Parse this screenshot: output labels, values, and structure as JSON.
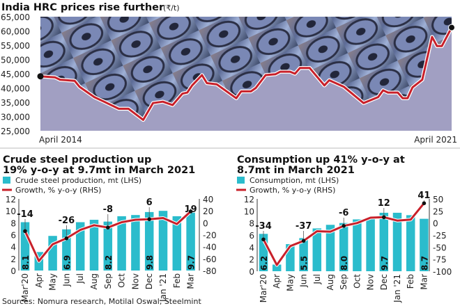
{
  "top_chart": {
    "title": "India HRC prices rise further",
    "unit": "(₹/t)",
    "x_start_label": "April 2014",
    "x_end_label": "April 2021"
  },
  "left_chart": {
    "heading_line1": "Crude steel production up",
    "heading_line2": "19% y-o-y at 9.7mt in March 2021",
    "legend_bar": "Crude steel production, mt (LHS)",
    "legend_line": "Growth, % y-o-y (RHS)"
  },
  "right_chart": {
    "heading_line1": "Consumption up 41% y-o-y at",
    "heading_line2": "8.7mt in March 2021",
    "legend_bar": "Consumption, mt (LHS)",
    "legend_line": "Growth, % y-o-y (RHS)"
  },
  "source": "Sources: Nomura research, Motilal Oswal, Steelmint",
  "colors": {
    "bar": "#2bbccc",
    "line": "#c8202a",
    "area": "#a19fc2",
    "photo": "#6f7ea8"
  },
  "chart_data": [
    {
      "type": "area",
      "title": "India HRC prices rise further",
      "ylabel": "(₹/t)",
      "ylim": [
        25000,
        65000
      ],
      "yticks": [
        25000,
        30000,
        35000,
        40000,
        45000,
        50000,
        55000,
        60000,
        65000
      ],
      "ytick_labels": [
        "25,000",
        "30,000",
        "35,000",
        "40,000",
        "45,000",
        "50,000",
        "55,000",
        "60,000",
        "65,000"
      ],
      "xlim": [
        "2014-04",
        "2021-04"
      ],
      "x": [
        "2014-04",
        "2014-07",
        "2014-08",
        "2014-11",
        "2014-12",
        "2015-03",
        "2015-05",
        "2015-08",
        "2015-10",
        "2016-01",
        "2016-03",
        "2016-05",
        "2016-07",
        "2016-09",
        "2016-10",
        "2016-11",
        "2017-01",
        "2017-02",
        "2017-04",
        "2017-08",
        "2017-09",
        "2017-11",
        "2017-12",
        "2018-02",
        "2018-04",
        "2018-05",
        "2018-07",
        "2018-08",
        "2018-09",
        "2018-11",
        "2019-02",
        "2019-03",
        "2019-06",
        "2019-10",
        "2020-01",
        "2020-02",
        "2020-03",
        "2020-05",
        "2020-06",
        "2020-07",
        "2020-08",
        "2020-10",
        "2020-12",
        "2021-01",
        "2021-02",
        "2021-04"
      ],
      "y": [
        44100,
        43700,
        42900,
        42500,
        40400,
        36800,
        35200,
        32700,
        32700,
        28800,
        34700,
        35200,
        34000,
        38000,
        38400,
        40900,
        44500,
        41700,
        41300,
        36400,
        38800,
        38800,
        40000,
        44500,
        44800,
        45700,
        45700,
        45000,
        47000,
        47000,
        40900,
        42700,
        40400,
        34700,
        36800,
        39200,
        38400,
        38400,
        36400,
        36400,
        40200,
        42900,
        57900,
        54700,
        54700,
        61200
      ],
      "grid": false
    },
    {
      "type": "bar",
      "categories": [
        "Mar'20",
        "Apr",
        "May",
        "Jun",
        "Jul",
        "Aug",
        "Sep",
        "Oct",
        "Nov",
        "Dec",
        "Jan '21",
        "Feb",
        "Mar"
      ],
      "series": [
        {
          "name": "Crude steel production, mt (LHS)",
          "type": "bar",
          "axis": "left",
          "values": [
            8.1,
            3.1,
            5.8,
            6.9,
            8.1,
            8.5,
            8.2,
            9.1,
            9.3,
            9.8,
            10.0,
            9.1,
            9.7
          ]
        },
        {
          "name": "Growth, % y-o-y (RHS)",
          "type": "line",
          "axis": "right",
          "values": [
            -14,
            -64,
            -36,
            -26,
            -12,
            -4,
            -8,
            1,
            5,
            6,
            8,
            -2,
            19
          ]
        }
      ],
      "ylim_left": [
        0,
        12
      ],
      "yticks_left": [
        0,
        2,
        4,
        6,
        8,
        10,
        12
      ],
      "ylim_right": [
        -80,
        40
      ],
      "yticks_right": [
        -80,
        -60,
        -40,
        -20,
        0,
        20,
        40
      ],
      "bar_labels": {
        "0": "8.1",
        "3": "6.9",
        "6": "8.2",
        "9": "9.8",
        "12": "9.7"
      },
      "line_labels": {
        "0": "-14",
        "3": "-26",
        "6": "-8",
        "9": "6",
        "12": "19"
      },
      "legend": "top-left"
    },
    {
      "type": "bar",
      "categories": [
        "Mar'20",
        "Apr",
        "May",
        "Jun",
        "Jul",
        "Aug",
        "Sep",
        "Oct",
        "Nov",
        "Dec",
        "Jan '21",
        "Feb",
        "Mar"
      ],
      "series": [
        {
          "name": "Consumption, mt (LHS)",
          "type": "bar",
          "axis": "left",
          "values": [
            6.2,
            1.1,
            4.5,
            5.5,
            7.1,
            7.7,
            8.0,
            8.6,
            8.9,
            9.7,
            9.7,
            9.3,
            8.7
          ]
        },
        {
          "name": "Growth, % y-o-y (RHS)",
          "type": "line",
          "axis": "right",
          "values": [
            -34,
            -87,
            -48,
            -37,
            -17,
            -18,
            -6,
            0,
            11,
            12,
            5,
            7,
            41
          ]
        }
      ],
      "ylim_left": [
        0,
        12
      ],
      "yticks_left": [
        0,
        2,
        4,
        6,
        8,
        10,
        12
      ],
      "ylim_right": [
        -100,
        50
      ],
      "yticks_right": [
        -100,
        -75,
        -50,
        -25,
        0,
        25,
        50
      ],
      "bar_labels": {
        "0": "6.2",
        "3": "5.5",
        "6": "8.0",
        "9": "9.7",
        "12": "8.7"
      },
      "line_labels": {
        "0": "-34",
        "3": "-37",
        "6": "-6",
        "9": "12",
        "12": "41"
      },
      "legend": "top-left"
    }
  ]
}
